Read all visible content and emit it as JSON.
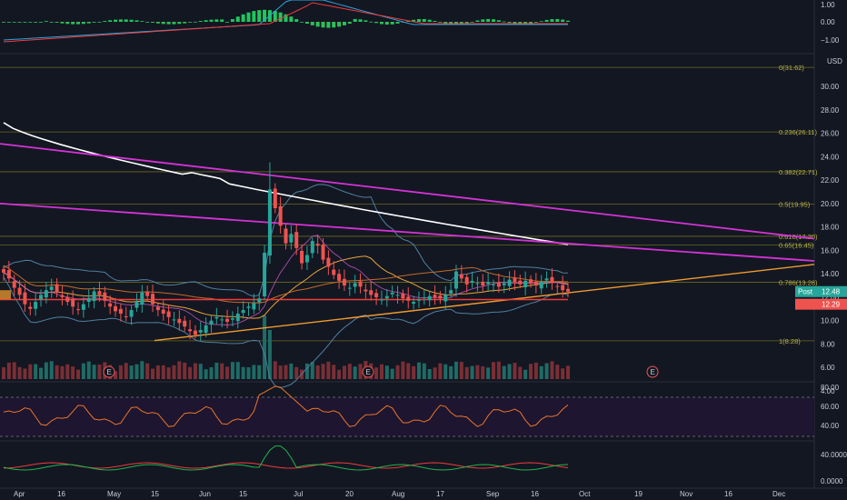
{
  "chart_data": {
    "type": "candlestick",
    "y_axis": {
      "unit": "USD",
      "ticks": [
        "4.00",
        "6.00",
        "8.00",
        "10.00",
        "12.00",
        "14.00",
        "16.00",
        "18.00",
        "20.00",
        "22.00",
        "24.00",
        "26.00",
        "28.00",
        "30.00"
      ],
      "range": [
        4.2,
        32.2
      ]
    },
    "x_axis": {
      "labels": [
        "Apr",
        "16",
        "May",
        "15",
        "Jun",
        "15",
        "Jul",
        "20",
        "Aug",
        "17",
        "Sep",
        "16",
        "Oct",
        "19",
        "Nov",
        "16",
        "Dec"
      ]
    },
    "fib_levels": [
      {
        "label": "0(31.62)",
        "value": 31.62
      },
      {
        "label": "0.236(26.11)",
        "value": 26.11
      },
      {
        "label": "0.382(22.71)",
        "value": 22.71
      },
      {
        "label": "0.5(19.95)",
        "value": 19.95
      },
      {
        "label": "0.618(17.20)",
        "value": 17.2
      },
      {
        "label": "0.65(16.45)",
        "value": 16.45
      },
      {
        "label": "0.786(13.28)",
        "value": 13.28
      },
      {
        "label": "1(8.28)",
        "value": 8.28
      }
    ],
    "price_tags": [
      {
        "label": "Post",
        "value": "12.48",
        "color": "#26a69a"
      },
      {
        "label": "",
        "value": "12.29",
        "color": "#ef5350"
      }
    ],
    "earnings_markers": [
      "E",
      "E",
      "E"
    ],
    "macd_panel": {
      "ticks": [
        "1.00",
        "0.00",
        "−1.00"
      ]
    },
    "rsi_panel": {
      "ticks": [
        "80.00",
        "60.00",
        "40.00"
      ]
    },
    "lower_panel": {
      "ticks": [
        "40.0000",
        "0.0000"
      ]
    },
    "price_series_approx": [
      14.1,
      13.6,
      12.8,
      12.2,
      11.4,
      11.0,
      11.6,
      12.2,
      12.6,
      12.9,
      12.4,
      12.0,
      11.6,
      11.2,
      10.9,
      11.4,
      11.9,
      12.5,
      12.2,
      11.7,
      11.2,
      10.8,
      10.6,
      10.3,
      10.9,
      11.6,
      12.4,
      12.1,
      11.4,
      10.9,
      10.6,
      10.3,
      10.1,
      9.8,
      9.5,
      9.1,
      8.8,
      9.2,
      9.6,
      10.0,
      10.3,
      10.1,
      9.9,
      10.2,
      10.6,
      10.9,
      11.2,
      11.5,
      11.9,
      15.8,
      21.2,
      19.6,
      18.1,
      16.6,
      17.4,
      16.2,
      14.9,
      15.6,
      16.8,
      16.4,
      15.2,
      14.6,
      13.9,
      13.4,
      13.0,
      12.8,
      13.2,
      12.9,
      12.5,
      12.2,
      12.0,
      11.8,
      12.1,
      12.4,
      12.2,
      11.9,
      11.7,
      11.6,
      11.8,
      12.0,
      12.1,
      12.0,
      11.9,
      12.2,
      12.6,
      14.2,
      13.6,
      13.1,
      13.4,
      13.2,
      13.0,
      13.3,
      13.1,
      12.9,
      13.2,
      13.5,
      13.3,
      13.1,
      13.4,
      13.2,
      13.0,
      13.3,
      13.6,
      13.2,
      12.9,
      12.6,
      12.48
    ]
  }
}
